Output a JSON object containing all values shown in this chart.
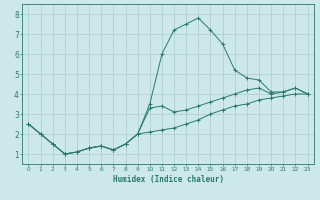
{
  "xlabel": "Humidex (Indice chaleur)",
  "x_values": [
    0,
    1,
    2,
    3,
    4,
    5,
    6,
    7,
    8,
    9,
    10,
    11,
    12,
    13,
    14,
    15,
    16,
    17,
    18,
    19,
    20,
    21,
    22,
    23
  ],
  "line1": [
    2.5,
    2.0,
    1.5,
    1.0,
    1.1,
    1.3,
    1.4,
    1.2,
    1.5,
    2.0,
    3.5,
    6.0,
    7.2,
    7.5,
    7.8,
    7.2,
    6.5,
    5.2,
    4.8,
    4.7,
    4.1,
    4.1,
    4.3,
    4.0
  ],
  "line2": [
    2.5,
    2.0,
    1.5,
    1.0,
    1.1,
    1.3,
    1.4,
    1.2,
    1.5,
    2.0,
    3.3,
    3.4,
    3.1,
    3.2,
    3.4,
    3.6,
    3.8,
    4.0,
    4.2,
    4.3,
    4.0,
    4.1,
    4.3,
    4.0
  ],
  "line3": [
    2.5,
    2.0,
    1.5,
    1.0,
    1.1,
    1.3,
    1.4,
    1.2,
    1.5,
    2.0,
    2.1,
    2.2,
    2.3,
    2.5,
    2.7,
    3.0,
    3.2,
    3.4,
    3.5,
    3.7,
    3.8,
    3.9,
    4.0,
    4.0
  ],
  "line_color": "#2a7a6a",
  "bg_color": "#cce8e8",
  "grid_color": "#aacccc",
  "xlim": [
    -0.5,
    23.5
  ],
  "ylim": [
    0.5,
    8.5
  ],
  "yticks": [
    1,
    2,
    3,
    4,
    5,
    6,
    7,
    8
  ],
  "xticks": [
    0,
    1,
    2,
    3,
    4,
    5,
    6,
    7,
    8,
    9,
    10,
    11,
    12,
    13,
    14,
    15,
    16,
    17,
    18,
    19,
    20,
    21,
    22,
    23
  ]
}
